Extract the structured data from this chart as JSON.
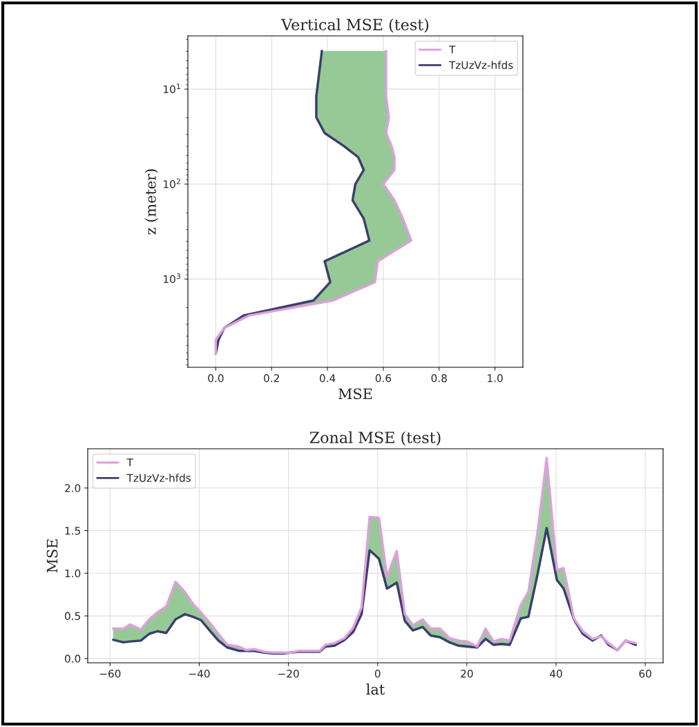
{
  "chart_data": [
    {
      "type": "line",
      "title": "Vertical MSE (test)",
      "xlabel": "MSE",
      "ylabel": "z (meter)",
      "orientation": "horizontal",
      "log": "y",
      "xlim": [
        -0.1,
        1.1
      ],
      "xticks": [
        {
          "value": 0,
          "label": "0.0"
        },
        {
          "value": 0.2,
          "label": "0.2"
        },
        {
          "value": 0.4,
          "label": "0.4"
        },
        {
          "value": 0.6,
          "label": "0.6"
        },
        {
          "value": 0.8,
          "label": "0.8"
        },
        {
          "value": 1,
          "label": "1.0"
        }
      ],
      "ylim": [
        8500,
        2.75
      ],
      "yticks": [
        {
          "value": 10,
          "label": "10$^{1}$"
        },
        {
          "value": 100,
          "label": "10$^{2}$"
        },
        {
          "value": 1000,
          "label": "10$^{3}$"
        }
      ],
      "grid": true,
      "legend": "top right",
      "series": [
        {
          "name": "T",
          "color": "#dda0dd",
          "x": [
            3.95,
            12,
            19.8,
            29,
            40,
            52,
            71,
            100,
            148,
            231,
            393,
            650,
            1076,
            1683,
            2418,
            3288,
            4347,
            6080
          ],
          "values": [
            0.61,
            0.61,
            0.62,
            0.61,
            0.63,
            0.64,
            0.64,
            0.6,
            0.64,
            0.67,
            0.7,
            0.58,
            0.57,
            0.42,
            0.12,
            0.03,
            0.0,
            0.0
          ],
          "lower": [
            0.38,
            0.36,
            0.36,
            0.39,
            0.46,
            0.51,
            0.53,
            0.5,
            0.49,
            0.53,
            0.55,
            0.39,
            0.41,
            0.35,
            0.1,
            0.03,
            0.01,
            0.0
          ],
          "upper": [
            0.61,
            0.61,
            0.62,
            0.61,
            0.63,
            0.64,
            0.64,
            0.6,
            0.64,
            0.67,
            0.7,
            0.58,
            0.57,
            0.42,
            0.12,
            0.03,
            0.0,
            0.0
          ]
        },
        {
          "name": "TzUzVz-hfds",
          "color": "#3a3f6e",
          "x": [
            3.95,
            12,
            19.8,
            29,
            40,
            52,
            71,
            100,
            148,
            231,
            393,
            650,
            1076,
            1683,
            2418,
            3288,
            4347,
            6080
          ],
          "values": [
            0.38,
            0.36,
            0.36,
            0.39,
            0.46,
            0.51,
            0.53,
            0.5,
            0.49,
            0.53,
            0.55,
            0.39,
            0.41,
            0.35,
            0.1,
            0.03,
            0.01,
            0.0
          ]
        }
      ]
    },
    {
      "type": "line",
      "title": "Zonal MSE (test)",
      "xlabel": "lat",
      "ylabel": "MSE",
      "xlim": [
        -65,
        64
      ],
      "xticks": [
        {
          "value": -60,
          "label": "−60"
        },
        {
          "value": -40,
          "label": "−40"
        },
        {
          "value": -20,
          "label": "−20"
        },
        0,
        20,
        40,
        60
      ],
      "ylim": [
        -0.05,
        2.46
      ],
      "yticks": [
        {
          "value": 0,
          "label": "0.0"
        },
        {
          "value": 0.5,
          "label": "0.5"
        },
        {
          "value": 1,
          "label": "1.0"
        },
        {
          "value": 1.5,
          "label": "1.5"
        },
        {
          "value": 2,
          "label": "2.0"
        }
      ],
      "grid": true,
      "legend": "top left",
      "series": [
        {
          "name": "T",
          "color": "#dda0dd",
          "x": [
            -59.3,
            -57.0,
            -55.5,
            -53.1,
            -51.2,
            -49.4,
            -47.4,
            -45.3,
            -43.2,
            -41.4,
            -39.6,
            -37.5,
            -35.7,
            -33.7,
            -31.1,
            -29.5,
            -27.7,
            -25.4,
            -23.4,
            -21.3,
            -19.5,
            -17.7,
            -15.9,
            -13.0,
            -11.7,
            -9.7,
            -7.4,
            -5.5,
            -3.6,
            -1.8,
            0.3,
            2.1,
            4.3,
            6.1,
            7.9,
            10.1,
            11.9,
            14.0,
            16.1,
            18.2,
            20.1,
            22.3,
            24.2,
            26.0,
            27.8,
            29.6,
            32.1,
            33.8,
            35.9,
            37.9,
            40.2,
            41.7,
            44.0,
            46.0,
            48.2,
            50.1,
            51.8,
            53.8,
            55.6,
            57.9
          ],
          "values": [
            0.35,
            0.35,
            0.4,
            0.34,
            0.46,
            0.54,
            0.61,
            0.9,
            0.78,
            0.64,
            0.54,
            0.41,
            0.29,
            0.16,
            0.14,
            0.1,
            0.11,
            0.08,
            0.07,
            0.07,
            0.07,
            0.09,
            0.09,
            0.09,
            0.16,
            0.18,
            0.24,
            0.36,
            0.6,
            1.66,
            1.65,
            0.96,
            1.26,
            0.52,
            0.39,
            0.46,
            0.35,
            0.35,
            0.24,
            0.21,
            0.2,
            0.14,
            0.35,
            0.2,
            0.23,
            0.21,
            0.63,
            0.78,
            1.5,
            2.35,
            1.04,
            1.06,
            0.47,
            0.32,
            0.23,
            0.26,
            0.18,
            0.1,
            0.21,
            0.18
          ],
          "lower": [
            0.22,
            0.19,
            0.2,
            0.21,
            0.29,
            0.32,
            0.3,
            0.46,
            0.52,
            0.49,
            0.45,
            0.32,
            0.21,
            0.13,
            0.09,
            0.09,
            0.09,
            0.07,
            0.06,
            0.06,
            0.07,
            0.08,
            0.08,
            0.08,
            0.14,
            0.15,
            0.22,
            0.31,
            0.52,
            1.27,
            1.17,
            0.82,
            0.89,
            0.44,
            0.33,
            0.37,
            0.27,
            0.25,
            0.19,
            0.15,
            0.14,
            0.13,
            0.23,
            0.16,
            0.17,
            0.16,
            0.47,
            0.49,
            1.0,
            1.53,
            0.92,
            0.82,
            0.46,
            0.29,
            0.21,
            0.27,
            0.16,
            0.1,
            0.21,
            0.16
          ],
          "upper": [
            0.35,
            0.35,
            0.4,
            0.34,
            0.46,
            0.54,
            0.61,
            0.9,
            0.78,
            0.64,
            0.54,
            0.41,
            0.29,
            0.16,
            0.14,
            0.1,
            0.11,
            0.08,
            0.07,
            0.07,
            0.07,
            0.09,
            0.09,
            0.09,
            0.16,
            0.18,
            0.24,
            0.36,
            0.6,
            1.66,
            1.65,
            0.96,
            1.26,
            0.52,
            0.39,
            0.46,
            0.35,
            0.35,
            0.24,
            0.21,
            0.2,
            0.14,
            0.35,
            0.2,
            0.23,
            0.21,
            0.63,
            0.78,
            1.5,
            2.35,
            1.04,
            1.06,
            0.47,
            0.32,
            0.23,
            0.26,
            0.18,
            0.1,
            0.21,
            0.18
          ]
        },
        {
          "name": "TzUzVz-hfds",
          "color": "#3a3f6e",
          "x": [
            -59.3,
            -57.0,
            -55.5,
            -53.1,
            -51.2,
            -49.4,
            -47.4,
            -45.3,
            -43.2,
            -41.4,
            -39.6,
            -37.5,
            -35.7,
            -33.7,
            -31.1,
            -29.5,
            -27.7,
            -25.4,
            -23.4,
            -21.3,
            -19.5,
            -17.7,
            -15.9,
            -13.0,
            -11.7,
            -9.7,
            -7.4,
            -5.5,
            -3.6,
            -1.8,
            0.3,
            2.1,
            4.3,
            6.1,
            7.9,
            10.1,
            11.9,
            14.0,
            16.1,
            18.2,
            20.1,
            22.3,
            24.2,
            26.0,
            27.8,
            29.6,
            32.1,
            33.8,
            35.9,
            37.9,
            40.2,
            41.7,
            44.0,
            46.0,
            48.2,
            50.1,
            51.8,
            53.8,
            55.6,
            57.9
          ],
          "values": [
            0.22,
            0.19,
            0.2,
            0.21,
            0.29,
            0.32,
            0.3,
            0.46,
            0.52,
            0.49,
            0.45,
            0.32,
            0.21,
            0.13,
            0.09,
            0.09,
            0.09,
            0.07,
            0.06,
            0.06,
            0.07,
            0.08,
            0.08,
            0.08,
            0.14,
            0.15,
            0.22,
            0.31,
            0.52,
            1.27,
            1.17,
            0.82,
            0.89,
            0.44,
            0.33,
            0.37,
            0.27,
            0.25,
            0.19,
            0.15,
            0.14,
            0.13,
            0.23,
            0.16,
            0.17,
            0.16,
            0.47,
            0.49,
            1.0,
            1.53,
            0.92,
            0.82,
            0.46,
            0.29,
            0.21,
            0.27,
            0.16,
            0.1,
            0.21,
            0.16
          ]
        }
      ]
    }
  ]
}
